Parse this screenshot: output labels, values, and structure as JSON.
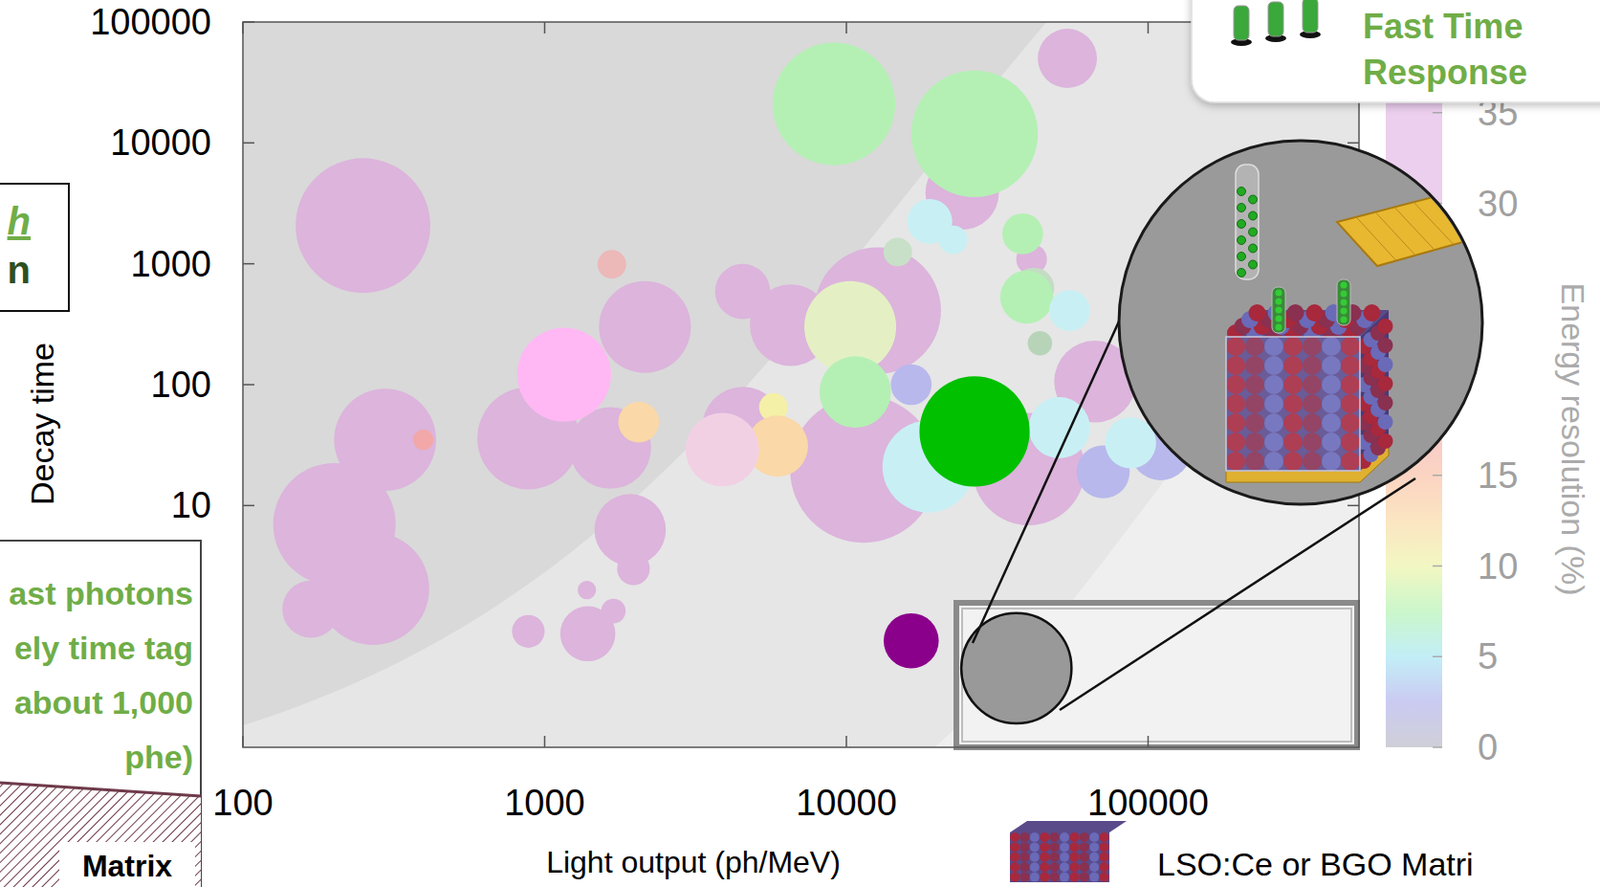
{
  "chart_data": {
    "type": "bubble",
    "x_label": "Light output (ph/MeV)",
    "y_label": "Decay time",
    "log": true,
    "grid": false,
    "xlim": [
      100,
      500000
    ],
    "ylim": [
      0.1,
      100000
    ],
    "xticks": [
      100,
      1000,
      10000,
      100000
    ],
    "yticks": [
      10,
      100,
      1000,
      10000,
      100000
    ],
    "series": [
      {
        "x": [
          250,
          201,
          270,
          168,
          296,
          883,
          11400,
          40200,
          12700,
          2150,
          6540,
          4530,
          4540,
          1650,
          1920,
          1970,
          1390,
          883,
          1690,
          1380,
          66700,
          54000,
          24200,
          41100,
          9100,
          26600,
          18900,
          22600,
          38400,
          1670,
          14800,
          41800,
          39600,
          54900,
          43800,
          10300,
          10700,
          1160,
          16400,
          5730,
          2050,
          5910,
          3880,
          396,
          18700,
          50800,
          71000,
          110000,
          87500,
          26600,
          16400,
          36600
        ],
        "values": [
          2070,
          7,
          2.05,
          1.39,
          35,
          36,
          20,
          20,
          410,
          300,
          310,
          590,
          44,
          30,
          6.3,
          3,
          0.87,
          0.91,
          1.34,
          2,
          106,
          50000,
          3860,
          1090,
          21000,
          11900,
          2240,
          1580,
          1770,
          990,
          1250,
          630,
          530,
          410,
          220,
          300,
          87,
          121,
          100,
          65,
          49,
          31,
          29,
          35,
          21,
          44,
          19,
          29,
          33,
          41,
          0.76,
          0.45
        ],
        "sizes": [
          66,
          60,
          55,
          28,
          50,
          50,
          72,
          55,
          62,
          45,
          40,
          27,
          40,
          40,
          35,
          16,
          27,
          16,
          12,
          9,
          40,
          29,
          36,
          15,
          60,
          62,
          22,
          14,
          20,
          14,
          14,
          20,
          26,
          20,
          12,
          45,
          35,
          46,
          20,
          14,
          20,
          30,
          36,
          10,
          45,
          30,
          26,
          30,
          25,
          54,
          27,
          54
        ],
        "colors": [
          "#dcb4dc",
          "#dcb4dc",
          "#dcb4dc",
          "#dcb4dc",
          "#dcb4dc",
          "#dcb4dc",
          "#dcb4dc",
          "#dcb4dc",
          "#dcb4dc",
          "#dcb4dc",
          "#dcb4dc",
          "#dcb4dc",
          "#dcb4dc",
          "#dcb4dc",
          "#dcb4dc",
          "#dcb4dc",
          "#dcb4dc",
          "#dcb4dc",
          "#dcb4dc",
          "#dcb4dc",
          "#dcb4dc",
          "#dcb4dc",
          "#dcb4dc",
          "#dcb4dc",
          "#b4f0b4",
          "#b4f0b4",
          "#c8f0f4",
          "#c8f0f4",
          "#b4f0b4",
          "#ecb8b8",
          "#c8e0c8",
          "#c4dcc4",
          "#b4f0b4",
          "#c8f0f4",
          "#b8d4b8",
          "#e4f0c4",
          "#b4f0b4",
          "#ffb8f4",
          "#b8b8ec",
          "#f4f0a8",
          "#fad8a8",
          "#fad8a8",
          "#f2d0e4",
          "#f2a8a8",
          "#c8f0f4",
          "#c8f0f4",
          "#b8b8ec",
          "#b8b8ec",
          "#c8f0f4",
          "#00c000",
          "#8b008b",
          "#999999"
        ]
      }
    ],
    "colorbar": {
      "label": "Energy resolution (%)",
      "range": [
        0,
        40
      ],
      "ticks": [
        0,
        5,
        10,
        15,
        30,
        35
      ],
      "colors": [
        "#a8a8b8",
        "#a0a0e8",
        "#90e0f0",
        "#a0f0a0",
        "#e8f090",
        "#f8d090",
        "#f8b090",
        "#f0a0a0",
        "#f0a8c8",
        "#e8a8d8",
        "#dca8e0",
        "#dca8e0",
        "#dca8e0",
        "#dca8e0",
        "#dca8e0",
        "#dca8e0",
        "#dca8e0"
      ]
    },
    "annotations": {
      "top_right": [
        "Fast Time",
        "Response"
      ],
      "left_box": [
        "h",
        "n"
      ],
      "left_note": [
        "ast photons",
        "ely time tag",
        "about 1,000",
        "phe)"
      ],
      "matrix_label": "Matrix",
      "bottom_right": "LSO:Ce or BGO Matri"
    }
  }
}
